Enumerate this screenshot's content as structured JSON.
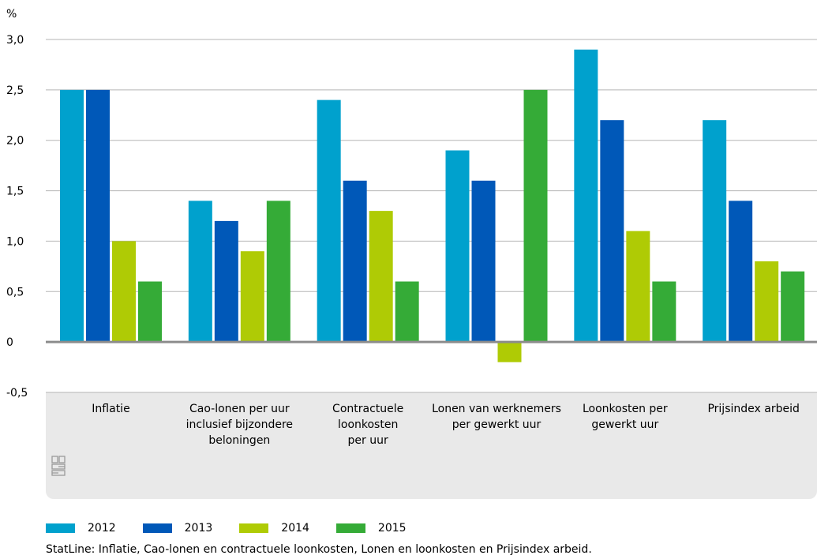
{
  "chart_data": {
    "type": "bar",
    "ylabel": "%",
    "ylim": [
      -0.5,
      3.0
    ],
    "yticks": [
      "3,0",
      "2,5",
      "2,0",
      "1,5",
      "1,0",
      "0,5",
      "0",
      "-0,5"
    ],
    "ytick_values": [
      3.0,
      2.5,
      2.0,
      1.5,
      1.0,
      0.5,
      0,
      -0.5
    ],
    "categories": [
      [
        "Inflatie"
      ],
      [
        "Cao-lonen per uur",
        "inclusief bijzondere",
        "beloningen"
      ],
      [
        "Contractuele",
        "loonkosten",
        "per uur"
      ],
      [
        "Lonen van werknemers",
        "per gewerkt uur"
      ],
      [
        "Loonkosten per",
        "gewerkt uur"
      ],
      [
        "Prijsindex arbeid"
      ]
    ],
    "series": [
      {
        "name": "2012",
        "color": "#00a1cd",
        "values": [
          2.5,
          1.4,
          2.4,
          1.9,
          2.9,
          2.2
        ]
      },
      {
        "name": "2013",
        "color": "#0058b8",
        "values": [
          2.5,
          1.2,
          1.6,
          1.6,
          2.2,
          1.4
        ]
      },
      {
        "name": "2014",
        "color": "#afcb05",
        "values": [
          1.0,
          0.9,
          1.3,
          -0.2,
          1.1,
          0.8
        ]
      },
      {
        "name": "2015",
        "color": "#35ab37",
        "values": [
          0.6,
          1.4,
          0.6,
          2.5,
          0.6,
          0.7
        ]
      }
    ],
    "grid": true,
    "legend_position": "bottom-left"
  },
  "source_text": "StatLine: Inflatie, Cao-lonen en contractuele loonkosten, Lonen en loonkosten en Prijsindex arbeid.",
  "logo_icon": "cbs-logo-icon"
}
